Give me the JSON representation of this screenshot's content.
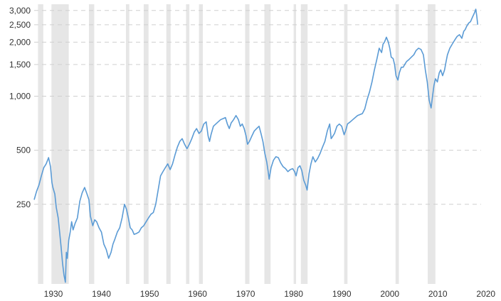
{
  "chart_data": {
    "type": "line",
    "title": "",
    "xlabel": "",
    "ylabel": "",
    "y_scale": "log",
    "xlim": [
      1926,
      2019
    ],
    "ylim": [
      90,
      3250
    ],
    "grid": {
      "horizontal": true,
      "vertical": false,
      "style": "dashed"
    },
    "legend": "none",
    "colors": {
      "line": "#5b9bd5",
      "recession": "#e6e6e6",
      "grid": "#cfcfcf",
      "text": "#333333"
    },
    "y_ticks": [
      {
        "value": 250,
        "label": "250"
      },
      {
        "value": 500,
        "label": "500"
      },
      {
        "value": 1000,
        "label": "1,000"
      },
      {
        "value": 1500,
        "label": "1,500"
      },
      {
        "value": 2000,
        "label": "2,000"
      },
      {
        "value": 2500,
        "label": "2,500"
      },
      {
        "value": 3000,
        "label": "3,000"
      }
    ],
    "x_ticks": [
      {
        "value": 1930,
        "label": "1930"
      },
      {
        "value": 1940,
        "label": "1940"
      },
      {
        "value": 1950,
        "label": "1950"
      },
      {
        "value": 1960,
        "label": "1960"
      },
      {
        "value": 1970,
        "label": "1970"
      },
      {
        "value": 1980,
        "label": "1980"
      },
      {
        "value": 1990,
        "label": "1990"
      },
      {
        "value": 2000,
        "label": "2000"
      },
      {
        "value": 2010,
        "label": "2010"
      },
      {
        "value": 2020,
        "label": "2020"
      }
    ],
    "recessions": [
      [
        1926.8,
        1927.9
      ],
      [
        1929.6,
        1933.2
      ],
      [
        1937.4,
        1938.5
      ],
      [
        1945.1,
        1945.8
      ],
      [
        1948.8,
        1949.8
      ],
      [
        1953.5,
        1954.4
      ],
      [
        1957.6,
        1958.3
      ],
      [
        1960.3,
        1961.1
      ],
      [
        1969.9,
        1970.8
      ],
      [
        1973.9,
        1975.2
      ],
      [
        1980.0,
        1980.5
      ],
      [
        1981.5,
        1982.9
      ],
      [
        1990.5,
        1991.2
      ],
      [
        2001.2,
        2001.9
      ],
      [
        2007.9,
        2009.5
      ]
    ],
    "series": [
      {
        "x": [
          1926,
          1926.5,
          1927,
          1927.5,
          1928,
          1928.5,
          1929,
          1929.4,
          1929.7,
          1929.9,
          1930.3,
          1930.6,
          1931,
          1931.3,
          1931.6,
          1931.9,
          1932.2,
          1932.5,
          1932.7,
          1932.9,
          1933.2,
          1933.5,
          1933.8,
          1934.1,
          1934.5,
          1935,
          1935.5,
          1936,
          1936.5,
          1937,
          1937.4,
          1937.7,
          1938.2,
          1938.6,
          1939,
          1939.5,
          1940,
          1940.5,
          1941,
          1941.5,
          1942,
          1942.4,
          1942.8,
          1943.3,
          1943.8,
          1944.3,
          1944.8,
          1945.2,
          1945.6,
          1946,
          1946.4,
          1946.8,
          1947.3,
          1947.8,
          1948.3,
          1948.8,
          1949.3,
          1949.8,
          1950.3,
          1950.8,
          1951.3,
          1951.8,
          1952.3,
          1952.8,
          1953.3,
          1953.8,
          1954.3,
          1954.8,
          1955.3,
          1955.8,
          1956.3,
          1956.8,
          1957.3,
          1957.8,
          1958.3,
          1958.8,
          1959.3,
          1959.8,
          1960.3,
          1960.8,
          1961.3,
          1961.8,
          1962.2,
          1962.5,
          1962.8,
          1963.3,
          1963.8,
          1964.3,
          1964.8,
          1965.3,
          1965.8,
          1966.2,
          1966.6,
          1967,
          1967.5,
          1968,
          1968.5,
          1968.9,
          1969.3,
          1969.7,
          1970.1,
          1970.4,
          1970.8,
          1971.3,
          1971.8,
          1972.3,
          1972.8,
          1973.2,
          1973.6,
          1974,
          1974.4,
          1974.7,
          1974.9,
          1975.3,
          1975.8,
          1976.3,
          1976.8,
          1977.3,
          1977.8,
          1978.3,
          1978.8,
          1979.3,
          1979.8,
          1980.2,
          1980.5,
          1980.9,
          1981.3,
          1981.7,
          1982.1,
          1982.5,
          1982.8,
          1983.2,
          1983.6,
          1984,
          1984.5,
          1985,
          1985.5,
          1986,
          1986.5,
          1987,
          1987.5,
          1987.8,
          1988,
          1988.5,
          1989,
          1989.5,
          1990,
          1990.5,
          1990.8,
          1991.2,
          1991.8,
          1992.3,
          1992.8,
          1993.3,
          1993.8,
          1994.3,
          1994.8,
          1995.3,
          1995.8,
          1996.3,
          1996.8,
          1997.3,
          1997.8,
          1998.3,
          1998.6,
          1998.9,
          1999.3,
          1999.7,
          2000,
          2000.3,
          2000.7,
          2001,
          2001.3,
          2001.7,
          2002,
          2002.4,
          2002.8,
          2003.1,
          2003.5,
          2004,
          2004.5,
          2005,
          2005.5,
          2006,
          2006.5,
          2007,
          2007.4,
          2007.8,
          2008.2,
          2008.6,
          2008.9,
          2009.2,
          2009.5,
          2009.9,
          2010.3,
          2010.6,
          2011,
          2011.4,
          2011.7,
          2012,
          2012.5,
          2013,
          2013.5,
          2014,
          2014.5,
          2015,
          2015.4,
          2015.7,
          2016,
          2016.4,
          2016.8,
          2017.2,
          2017.6,
          2017.9,
          2018.1,
          2018.3
        ],
        "values": [
          265,
          295,
          320,
          360,
          400,
          420,
          455,
          405,
          330,
          310,
          285,
          240,
          210,
          175,
          145,
          118,
          101,
          92,
          135,
          125,
          158,
          175,
          200,
          180,
          195,
          210,
          260,
          290,
          310,
          285,
          265,
          215,
          190,
          205,
          200,
          185,
          175,
          150,
          140,
          125,
          135,
          150,
          160,
          175,
          185,
          210,
          250,
          235,
          210,
          185,
          180,
          170,
          172,
          175,
          185,
          190,
          200,
          210,
          220,
          225,
          250,
          300,
          360,
          380,
          400,
          420,
          390,
          420,
          470,
          520,
          560,
          580,
          540,
          510,
          540,
          580,
          630,
          660,
          620,
          640,
          700,
          720,
          600,
          560,
          610,
          680,
          700,
          720,
          740,
          750,
          760,
          700,
          660,
          710,
          740,
          780,
          740,
          680,
          700,
          660,
          600,
          540,
          560,
          600,
          640,
          660,
          680,
          620,
          560,
          480,
          430,
          380,
          345,
          400,
          440,
          460,
          455,
          425,
          405,
          395,
          380,
          390,
          395,
          380,
          360,
          400,
          410,
          385,
          340,
          320,
          300,
          370,
          420,
          460,
          430,
          450,
          480,
          520,
          560,
          640,
          700,
          580,
          590,
          620,
          680,
          700,
          680,
          610,
          640,
          700,
          720,
          740,
          760,
          780,
          790,
          800,
          850,
          960,
          1060,
          1200,
          1400,
          1600,
          1850,
          1750,
          1950,
          2000,
          2130,
          2000,
          1850,
          1650,
          1620,
          1500,
          1300,
          1230,
          1350,
          1450,
          1450,
          1500,
          1560,
          1600,
          1650,
          1700,
          1800,
          1850,
          1820,
          1700,
          1400,
          1200,
          950,
          860,
          1000,
          1150,
          1250,
          1200,
          1350,
          1400,
          1300,
          1400,
          1550,
          1700,
          1850,
          1950,
          2050,
          2150,
          2200,
          2100,
          2300,
          2350,
          2450,
          2550,
          2600,
          2750,
          2900,
          3050,
          2800,
          2500
        ]
      }
    ]
  }
}
